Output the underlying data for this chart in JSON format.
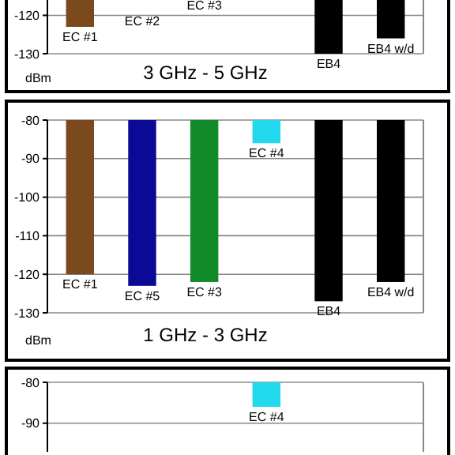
{
  "chart_data": [
    {
      "type": "bar",
      "title": "3 GHz - 5 GHz",
      "ylabel": "dBm",
      "categories": [
        "EC #1",
        "EC #2",
        "EC #3",
        null,
        "EB4",
        "EB4 w/d"
      ],
      "series": [
        {
          "colors": [
            "#7a4a1e",
            null,
            null,
            null,
            "#000000",
            "#000000"
          ],
          "values": [
            -123,
            null,
            null,
            null,
            -130,
            -126
          ]
        }
      ],
      "ylim": [
        -130,
        -116
      ],
      "yticks": [
        -120,
        -130
      ],
      "grid": "y"
    },
    {
      "type": "bar",
      "title": "1 GHz - 3 GHz",
      "ylabel": "dBm",
      "categories": [
        "EC #1",
        "EC #5",
        "EC #3",
        "EC #4",
        "EB4",
        "EB4 w/d"
      ],
      "series": [
        {
          "colors": [
            "#7a4a1e",
            "#0a0a96",
            "#118a2a",
            "#22d8ec",
            "#000000",
            "#000000"
          ],
          "values": [
            -120,
            -123,
            -122,
            -86,
            -127,
            -122
          ]
        }
      ],
      "ylim": [
        -130,
        -80
      ],
      "yticks": [
        -80,
        -90,
        -100,
        -110,
        -120,
        -130
      ],
      "grid": "y"
    },
    {
      "type": "bar",
      "categories": [
        null,
        null,
        null,
        "EC #4",
        null,
        null
      ],
      "series": [
        {
          "colors": [
            null,
            null,
            null,
            "#22d8ec",
            null,
            null
          ],
          "values": [
            null,
            null,
            null,
            -86,
            null,
            null
          ]
        }
      ],
      "ylim": [
        -97,
        -80
      ],
      "yticks": [
        -80,
        -90
      ],
      "grid": "y"
    }
  ]
}
